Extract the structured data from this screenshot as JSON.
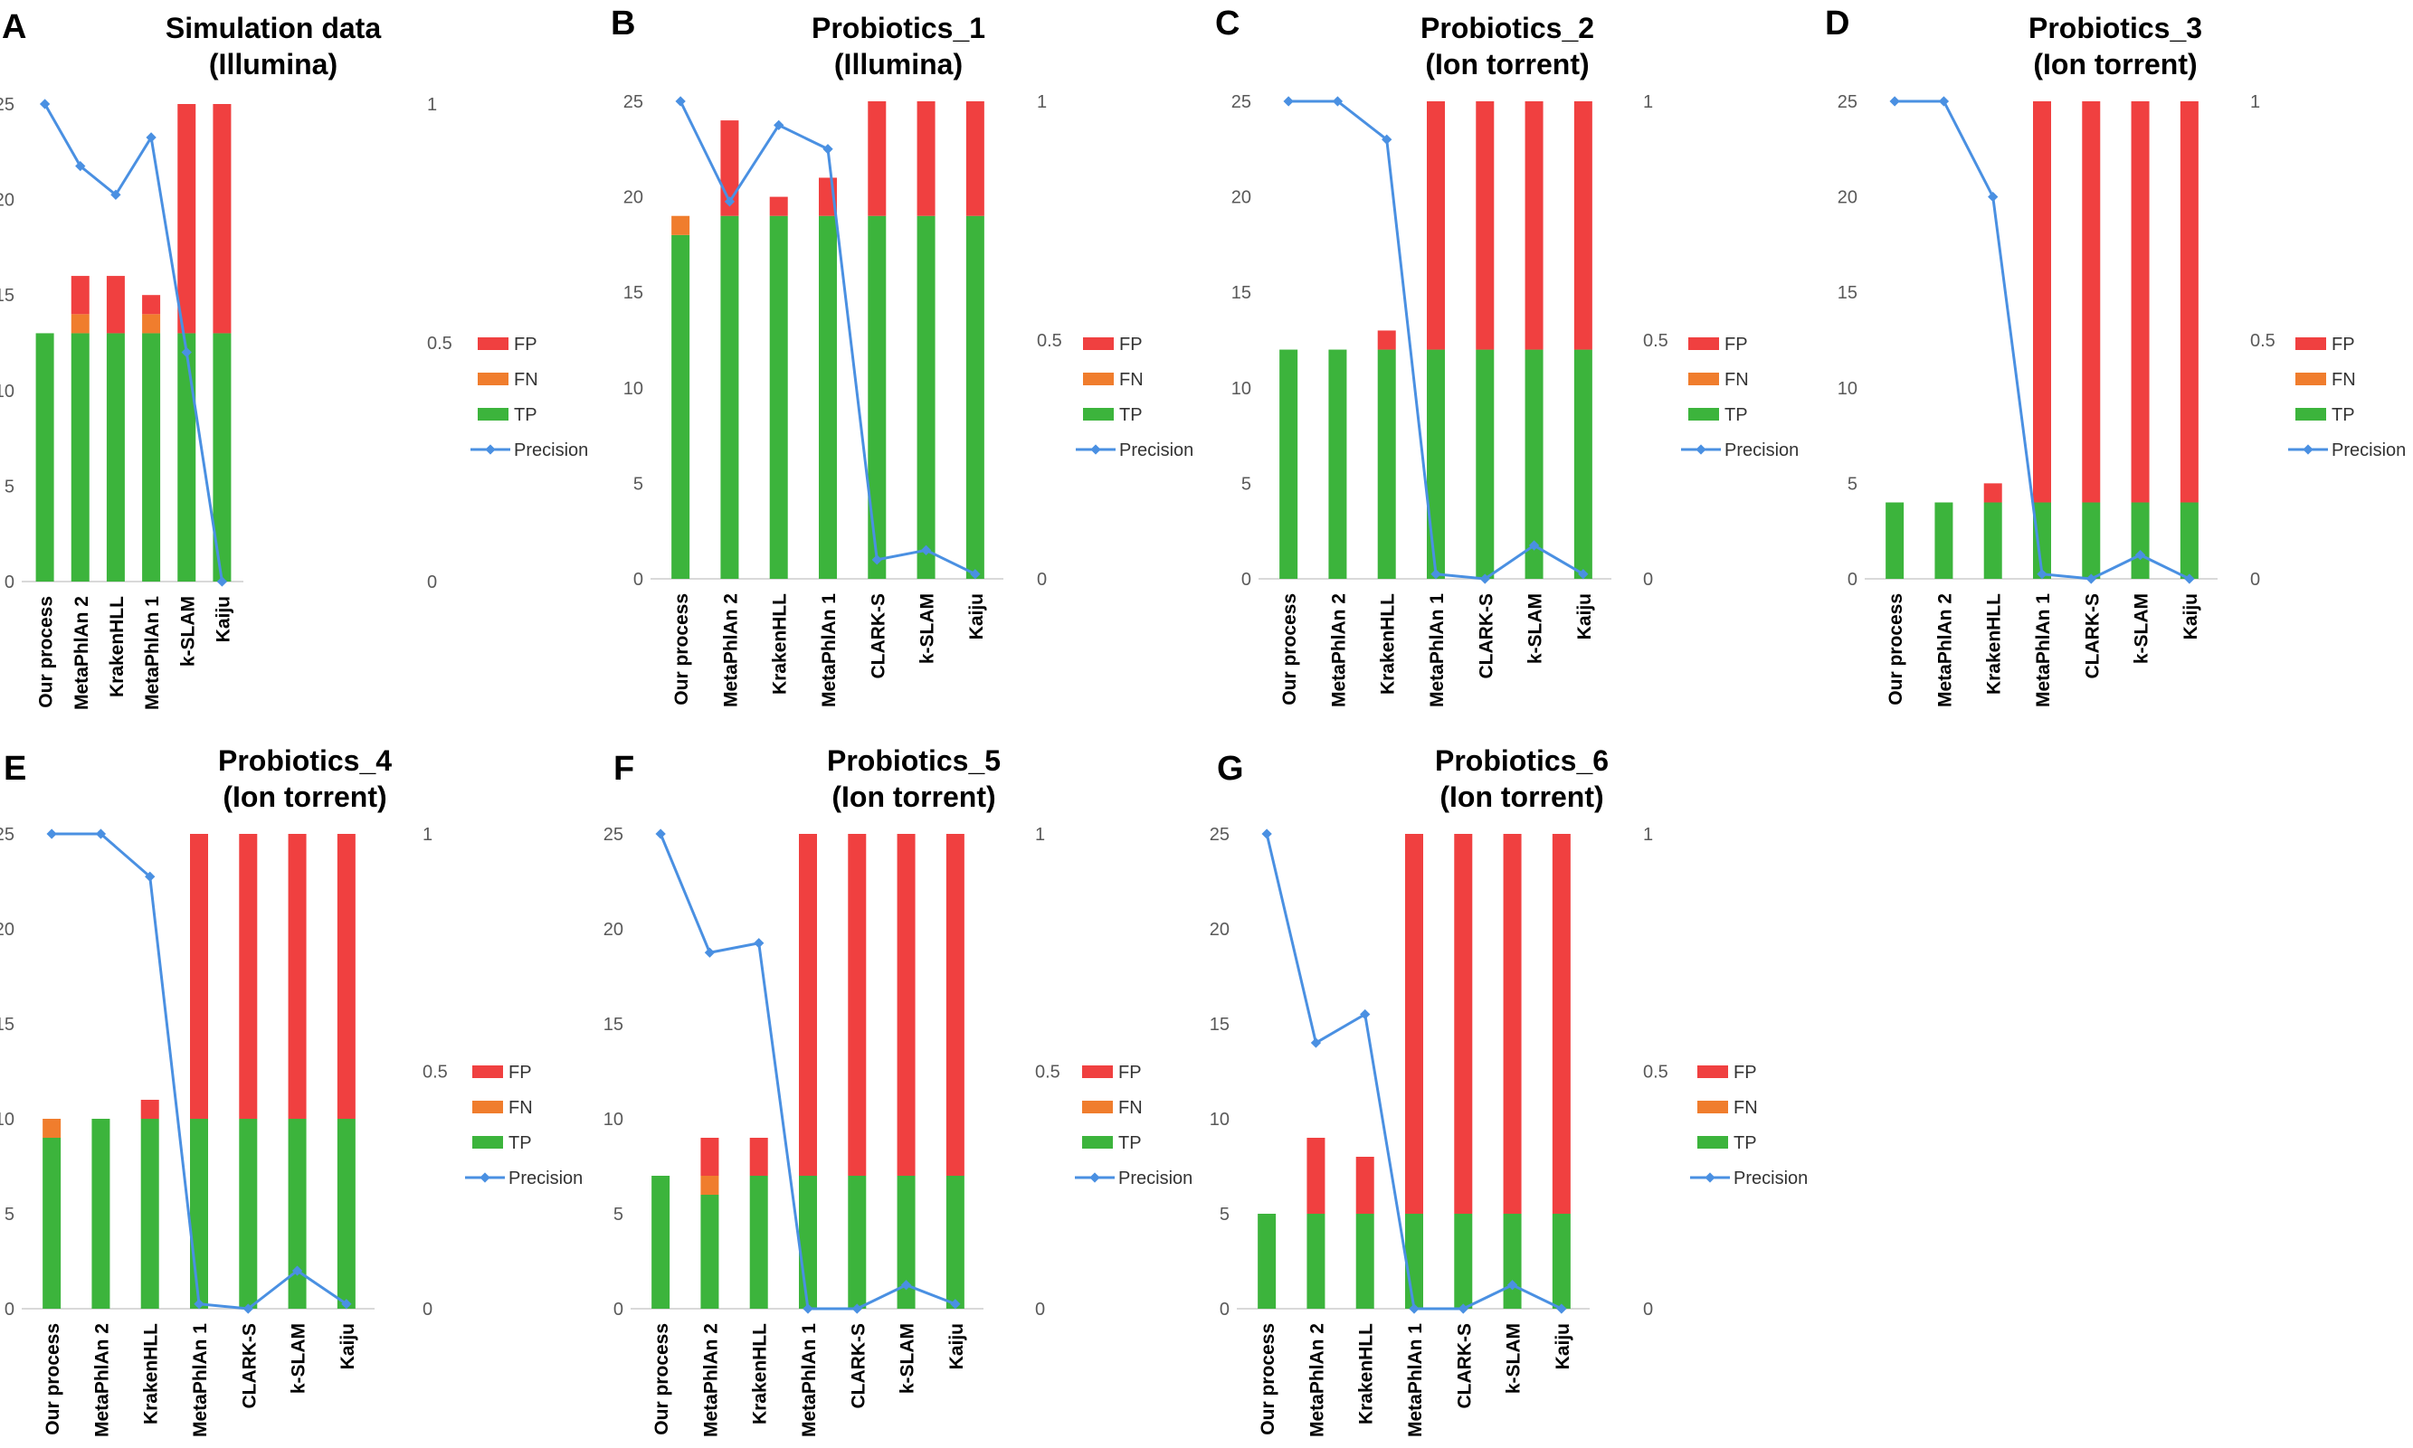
{
  "figure": {
    "colors": {
      "TP": "#3CB43C",
      "FN": "#F07D2D",
      "FP": "#F04040",
      "Precision": "#4A90E2",
      "axis": "#D9D9D9",
      "text": "#000000",
      "tick": "#595959"
    },
    "legend": [
      "FP",
      "FN",
      "TP",
      "Precision"
    ],
    "left_ticks": [
      "0",
      "5",
      "10",
      "15",
      "20",
      "25"
    ],
    "right_ticks": [
      "0",
      "0.5",
      "1"
    ]
  },
  "chart_data": [
    {
      "type": "bar+line",
      "panel": "A",
      "title_lines": [
        "Simulation data",
        "(Illumina)"
      ],
      "categories": [
        "Our process",
        "MetaPhlAn 2",
        "KrakenHLL",
        "MetaPhlAn 1",
        "k-SLAM",
        "Kaiju"
      ],
      "series": [
        {
          "name": "TP",
          "kind": "stacked-bar",
          "values": [
            13,
            13,
            13,
            13,
            13,
            13
          ]
        },
        {
          "name": "FN",
          "kind": "stacked-bar",
          "values": [
            0,
            1,
            0,
            1,
            0,
            0
          ]
        },
        {
          "name": "FP",
          "kind": "stacked-bar",
          "values": [
            0,
            2,
            3,
            1,
            12,
            12
          ]
        },
        {
          "name": "Precision",
          "kind": "line",
          "axis": "right",
          "values": [
            1.0,
            0.87,
            0.81,
            0.93,
            0.48,
            0.0
          ]
        }
      ],
      "ylim_left": [
        0,
        25
      ],
      "ylim_right": [
        0,
        1
      ]
    },
    {
      "type": "bar+line",
      "panel": "B",
      "title_lines": [
        "Probiotics_1",
        "(Illumina)"
      ],
      "categories": [
        "Our process",
        "MetaPhlAn 2",
        "KrakenHLL",
        "MetaPhlAn 1",
        "CLARK-S",
        "k-SLAM",
        "Kaiju"
      ],
      "series": [
        {
          "name": "TP",
          "kind": "stacked-bar",
          "values": [
            18,
            19,
            19,
            19,
            19,
            19,
            19
          ]
        },
        {
          "name": "FN",
          "kind": "stacked-bar",
          "values": [
            1,
            0,
            0,
            0,
            0,
            0,
            0
          ]
        },
        {
          "name": "FP",
          "kind": "stacked-bar",
          "values": [
            0,
            5,
            1,
            2,
            6,
            6,
            6
          ]
        },
        {
          "name": "Precision",
          "kind": "line",
          "axis": "right",
          "values": [
            1.0,
            0.79,
            0.95,
            0.9,
            0.04,
            0.06,
            0.01
          ]
        }
      ],
      "ylim_left": [
        0,
        25
      ],
      "ylim_right": [
        0,
        1
      ]
    },
    {
      "type": "bar+line",
      "panel": "C",
      "title_lines": [
        "Probiotics_2",
        "(Ion torrent)"
      ],
      "categories": [
        "Our process",
        "MetaPhlAn 2",
        "KrakenHLL",
        "MetaPhlAn 1",
        "CLARK-S",
        "k-SLAM",
        "Kaiju"
      ],
      "series": [
        {
          "name": "TP",
          "kind": "stacked-bar",
          "values": [
            12,
            12,
            12,
            12,
            12,
            12,
            12
          ]
        },
        {
          "name": "FN",
          "kind": "stacked-bar",
          "values": [
            0,
            0,
            0,
            0,
            0,
            0,
            0
          ]
        },
        {
          "name": "FP",
          "kind": "stacked-bar",
          "values": [
            0,
            0,
            1,
            13,
            13,
            13,
            13
          ]
        },
        {
          "name": "Precision",
          "kind": "line",
          "axis": "right",
          "values": [
            1.0,
            1.0,
            0.92,
            0.01,
            0.0,
            0.07,
            0.01
          ]
        }
      ],
      "ylim_left": [
        0,
        25
      ],
      "ylim_right": [
        0,
        1
      ]
    },
    {
      "type": "bar+line",
      "panel": "D",
      "title_lines": [
        "Probiotics_3",
        "(Ion torrent)"
      ],
      "categories": [
        "Our process",
        "MetaPhlAn 2",
        "KrakenHLL",
        "MetaPhlAn 1",
        "CLARK-S",
        "k-SLAM",
        "Kaiju"
      ],
      "series": [
        {
          "name": "TP",
          "kind": "stacked-bar",
          "values": [
            4,
            4,
            4,
            4,
            4,
            4,
            4
          ]
        },
        {
          "name": "FN",
          "kind": "stacked-bar",
          "values": [
            0,
            0,
            0,
            0,
            0,
            0,
            0
          ]
        },
        {
          "name": "FP",
          "kind": "stacked-bar",
          "values": [
            0,
            0,
            1,
            21,
            21,
            21,
            21
          ]
        },
        {
          "name": "Precision",
          "kind": "line",
          "axis": "right",
          "values": [
            1.0,
            1.0,
            0.8,
            0.01,
            0.0,
            0.05,
            0.0
          ]
        }
      ],
      "ylim_left": [
        0,
        25
      ],
      "ylim_right": [
        0,
        1
      ]
    },
    {
      "type": "bar+line",
      "panel": "E",
      "title_lines": [
        "Probiotics_4",
        "(Ion torrent)"
      ],
      "categories": [
        "Our process",
        "MetaPhlAn 2",
        "KrakenHLL",
        "MetaPhlAn 1",
        "CLARK-S",
        "k-SLAM",
        "Kaiju"
      ],
      "series": [
        {
          "name": "TP",
          "kind": "stacked-bar",
          "values": [
            9,
            10,
            10,
            10,
            10,
            10,
            10
          ]
        },
        {
          "name": "FN",
          "kind": "stacked-bar",
          "values": [
            1,
            0,
            0,
            0,
            0,
            0,
            0
          ]
        },
        {
          "name": "FP",
          "kind": "stacked-bar",
          "values": [
            0,
            0,
            1,
            15,
            15,
            15,
            15
          ]
        },
        {
          "name": "Precision",
          "kind": "line",
          "axis": "right",
          "values": [
            1.0,
            1.0,
            0.91,
            0.01,
            0.0,
            0.08,
            0.01
          ]
        }
      ],
      "ylim_left": [
        0,
        25
      ],
      "ylim_right": [
        0,
        1
      ]
    },
    {
      "type": "bar+line",
      "panel": "F",
      "title_lines": [
        "Probiotics_5",
        "(Ion torrent)"
      ],
      "categories": [
        "Our process",
        "MetaPhlAn 2",
        "KrakenHLL",
        "MetaPhlAn 1",
        "CLARK-S",
        "k-SLAM",
        "Kaiju"
      ],
      "series": [
        {
          "name": "TP",
          "kind": "stacked-bar",
          "values": [
            7,
            6,
            7,
            7,
            7,
            7,
            7
          ]
        },
        {
          "name": "FN",
          "kind": "stacked-bar",
          "values": [
            0,
            1,
            0,
            0,
            0,
            0,
            0
          ]
        },
        {
          "name": "FP",
          "kind": "stacked-bar",
          "values": [
            0,
            2,
            2,
            18,
            18,
            18,
            18
          ]
        },
        {
          "name": "Precision",
          "kind": "line",
          "axis": "right",
          "values": [
            1.0,
            0.75,
            0.77,
            0.0,
            0.0,
            0.05,
            0.01
          ]
        }
      ],
      "ylim_left": [
        0,
        25
      ],
      "ylim_right": [
        0,
        1
      ]
    },
    {
      "type": "bar+line",
      "panel": "G",
      "title_lines": [
        "Probiotics_6",
        "(Ion torrent)"
      ],
      "categories": [
        "Our process",
        "MetaPhlAn 2",
        "KrakenHLL",
        "MetaPhlAn 1",
        "CLARK-S",
        "k-SLAM",
        "Kaiju"
      ],
      "series": [
        {
          "name": "TP",
          "kind": "stacked-bar",
          "values": [
            5,
            5,
            5,
            5,
            5,
            5,
            5
          ]
        },
        {
          "name": "FN",
          "kind": "stacked-bar",
          "values": [
            0,
            0,
            0,
            0,
            0,
            0,
            0
          ]
        },
        {
          "name": "FP",
          "kind": "stacked-bar",
          "values": [
            0,
            4,
            3,
            20,
            20,
            20,
            20
          ]
        },
        {
          "name": "Precision",
          "kind": "line",
          "axis": "right",
          "values": [
            1.0,
            0.56,
            0.62,
            0.0,
            0.0,
            0.05,
            0.0
          ]
        }
      ],
      "ylim_left": [
        0,
        25
      ],
      "ylim_right": [
        0,
        1
      ]
    }
  ]
}
